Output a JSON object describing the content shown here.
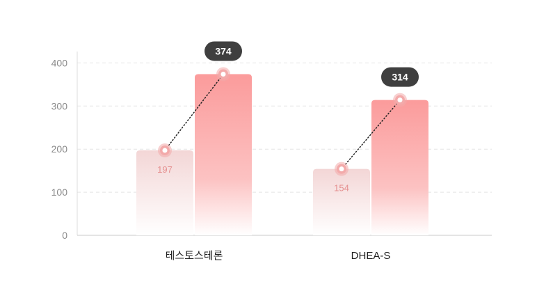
{
  "chart_data": {
    "type": "bar",
    "categories": [
      "테스토스테론",
      "DHEA-S"
    ],
    "series": [
      {
        "values": [
          197,
          154
        ]
      },
      {
        "values": [
          374,
          314
        ]
      }
    ],
    "y_ticks": [
      0,
      100,
      200,
      300,
      400
    ],
    "ylim": [
      0,
      420
    ],
    "grid": true,
    "colors": {
      "before_bar_top": "#f3d6d6",
      "after_bar_top": "#fb9b9b",
      "marker_ring": "#f3aaaa",
      "badge_bg": "#3f3f3f",
      "value_text": "#e58f8f",
      "connector": "#222222"
    }
  }
}
